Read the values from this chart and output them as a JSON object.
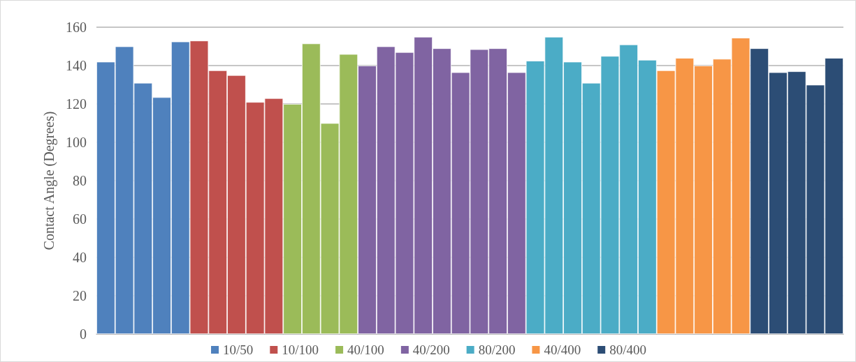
{
  "chart_data": {
    "type": "bar",
    "ylabel": "Contact Angle (Degrees)",
    "categories": [
      null,
      null,
      null,
      null,
      null,
      null,
      null,
      null,
      null,
      null,
      null,
      null,
      null,
      null,
      null,
      null,
      null,
      null,
      null,
      null,
      null,
      null,
      null,
      null,
      null,
      null,
      null,
      null,
      null,
      null,
      null,
      null,
      null,
      null,
      null,
      null,
      null,
      null,
      null,
      null
    ],
    "series": [
      {
        "name": "10/50",
        "color": "#4f81bd",
        "values": [
          142,
          150,
          131,
          123.5,
          152.5,
          null,
          null,
          null,
          null,
          null,
          null,
          null,
          null,
          null,
          null,
          null,
          null,
          null,
          null,
          null,
          null,
          null,
          null,
          null,
          null,
          null,
          null,
          null,
          null,
          null,
          null,
          null,
          null,
          null,
          null,
          null,
          null,
          null,
          null,
          null
        ]
      },
      {
        "name": "10/100",
        "color": "#c0504d",
        "values": [
          null,
          null,
          null,
          null,
          null,
          153,
          137.5,
          135,
          121,
          123,
          null,
          null,
          null,
          null,
          null,
          null,
          null,
          null,
          null,
          null,
          null,
          null,
          null,
          null,
          null,
          null,
          null,
          null,
          null,
          null,
          null,
          null,
          null,
          null,
          null,
          null,
          null,
          null,
          null,
          null
        ]
      },
      {
        "name": "40/100",
        "color": "#9bbb59",
        "values": [
          null,
          null,
          null,
          null,
          null,
          null,
          null,
          null,
          null,
          null,
          120,
          151.5,
          110,
          146,
          null,
          null,
          null,
          null,
          null,
          null,
          null,
          null,
          null,
          null,
          null,
          null,
          null,
          null,
          null,
          null,
          null,
          null,
          null,
          null,
          null,
          null,
          null,
          null,
          null,
          null
        ]
      },
      {
        "name": "40/200",
        "color": "#8064a2",
        "values": [
          null,
          null,
          null,
          null,
          null,
          null,
          null,
          null,
          null,
          null,
          null,
          null,
          null,
          null,
          140,
          150,
          147,
          155,
          149,
          136.5,
          148.5,
          149,
          136.5,
          null,
          null,
          null,
          null,
          null,
          null,
          null,
          null,
          null,
          null,
          null,
          null,
          null,
          null,
          null,
          null,
          null
        ]
      },
      {
        "name": "80/200",
        "color": "#4bacc6",
        "values": [
          null,
          null,
          null,
          null,
          null,
          null,
          null,
          null,
          null,
          null,
          null,
          null,
          null,
          null,
          null,
          null,
          null,
          null,
          null,
          null,
          null,
          null,
          null,
          142.5,
          155,
          142,
          131,
          145,
          151,
          143,
          null,
          null,
          null,
          null,
          null,
          null,
          null,
          null,
          null,
          null
        ]
      },
      {
        "name": "40/400",
        "color": "#f79646",
        "values": [
          null,
          null,
          null,
          null,
          null,
          null,
          null,
          null,
          null,
          null,
          null,
          null,
          null,
          null,
          null,
          null,
          null,
          null,
          null,
          null,
          null,
          null,
          null,
          null,
          null,
          null,
          null,
          null,
          null,
          null,
          137.5,
          144,
          140,
          143.5,
          154.5,
          null,
          null,
          null,
          null,
          null
        ]
      },
      {
        "name": "80/400",
        "color": "#2c4d75",
        "values": [
          null,
          null,
          null,
          null,
          null,
          null,
          null,
          null,
          null,
          null,
          null,
          null,
          null,
          null,
          null,
          null,
          null,
          null,
          null,
          null,
          null,
          null,
          null,
          null,
          null,
          null,
          null,
          null,
          null,
          null,
          null,
          null,
          null,
          null,
          null,
          149,
          136.5,
          137,
          130,
          144
        ]
      }
    ],
    "ylim": [
      0,
      160
    ],
    "yticks": [
      0,
      20,
      40,
      60,
      80,
      100,
      120,
      140,
      160
    ],
    "grid": "y",
    "legend": "bottom",
    "tick_labels": "y"
  }
}
